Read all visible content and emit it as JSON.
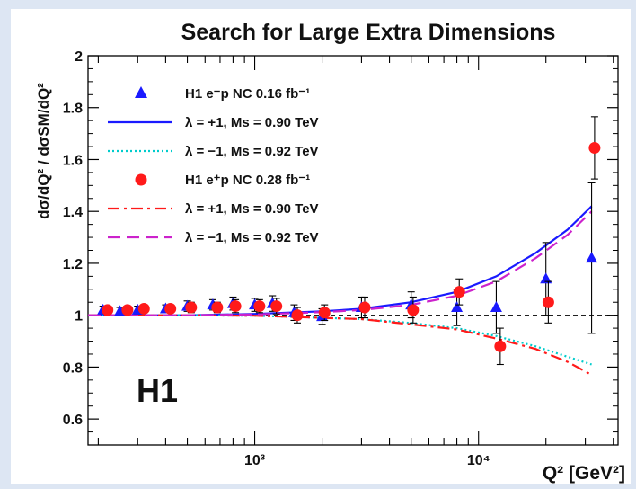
{
  "chart_data": {
    "type": "scatter",
    "title": "Search for Large Extra Dimensions",
    "xlabel": "Q² [GeV²]",
    "ylabel": "dσ/dQ² / dσSM/dQ²",
    "xscale": "log",
    "xlim": [
      180,
      42000
    ],
    "ylim": [
      0.5,
      2.0
    ],
    "x_ticks": [
      {
        "value": 1000,
        "label": "10³"
      },
      {
        "value": 10000,
        "label": "10⁴"
      }
    ],
    "y_ticks": [
      0.6,
      0.8,
      1.0,
      1.2,
      1.4,
      1.6,
      1.8,
      2.0
    ],
    "y_tick_labels": [
      "0.6",
      "0.8",
      "1",
      "1.2",
      "1.4",
      "1.6",
      "1.8",
      "2"
    ],
    "annotation": "H1",
    "reference_line": 1.0,
    "legend_position": "top-left",
    "series": [
      {
        "name": "H1 e⁻p NC 0.16 fb⁻¹",
        "kind": "points",
        "marker": "triangle",
        "color": "#1a1aff",
        "x": [
          210,
          250,
          300,
          400,
          500,
          650,
          800,
          1000,
          1200,
          1500,
          2000,
          3000,
          5000,
          8000,
          12000,
          20000,
          32000
        ],
        "y": [
          1.02,
          1.015,
          1.02,
          1.025,
          1.035,
          1.04,
          1.045,
          1.04,
          1.045,
          1.01,
          0.995,
          1.03,
          1.04,
          1.03,
          1.03,
          1.14,
          1.22
        ],
        "err": [
          0.015,
          0.015,
          0.015,
          0.015,
          0.02,
          0.02,
          0.025,
          0.025,
          0.03,
          0.03,
          0.03,
          0.04,
          0.05,
          0.07,
          0.1,
          0.14,
          0.29
        ]
      },
      {
        "name": "λ = +1,   Ms = 0.90 TeV",
        "kind": "line",
        "style": "solid",
        "color": "#1a1aff",
        "x": [
          180,
          500,
          1000,
          2000,
          3000,
          5000,
          8000,
          12000,
          18000,
          25000,
          32000
        ],
        "y": [
          1.0,
          1.0,
          1.005,
          1.015,
          1.025,
          1.05,
          1.09,
          1.15,
          1.24,
          1.33,
          1.42
        ]
      },
      {
        "name": "λ = −1,   Ms = 0.92 TeV",
        "kind": "line",
        "style": "dotted",
        "color": "#00cccc",
        "x": [
          180,
          500,
          1000,
          2000,
          3000,
          5000,
          8000,
          12000,
          18000,
          25000,
          32000
        ],
        "y": [
          1.0,
          1.0,
          0.998,
          0.99,
          0.985,
          0.97,
          0.95,
          0.92,
          0.88,
          0.84,
          0.81
        ]
      },
      {
        "name": "H1 e⁺p NC 0.28 fb⁻¹",
        "kind": "points",
        "marker": "circle",
        "color": "#ff1a1a",
        "x": [
          220,
          270,
          320,
          420,
          520,
          680,
          820,
          1050,
          1250,
          1550,
          2050,
          3100,
          5100,
          8200,
          12500,
          20500,
          33000
        ],
        "y": [
          1.02,
          1.02,
          1.025,
          1.025,
          1.03,
          1.03,
          1.035,
          1.035,
          1.035,
          1.0,
          1.01,
          1.03,
          1.02,
          1.09,
          0.88,
          1.05,
          1.645
        ],
        "err": [
          0.015,
          0.015,
          0.015,
          0.015,
          0.02,
          0.02,
          0.025,
          0.025,
          0.03,
          0.03,
          0.03,
          0.04,
          0.05,
          0.05,
          0.07,
          0.08,
          0.12
        ]
      },
      {
        "name": "λ = +1,   Ms = 0.90 TeV",
        "kind": "line",
        "style": "dashdot",
        "color": "#ff1a1a",
        "x": [
          180,
          500,
          1000,
          2000,
          3000,
          5000,
          8000,
          12000,
          18000,
          25000,
          32000
        ],
        "y": [
          1.0,
          1.0,
          0.998,
          0.99,
          0.985,
          0.965,
          0.945,
          0.91,
          0.87,
          0.82,
          0.77
        ]
      },
      {
        "name": "λ = −1,   Ms = 0.92 TeV",
        "kind": "line",
        "style": "dashed",
        "color": "#cc22cc",
        "x": [
          180,
          500,
          1000,
          2000,
          3000,
          5000,
          8000,
          12000,
          18000,
          25000,
          32000
        ],
        "y": [
          1.0,
          1.0,
          1.003,
          1.012,
          1.02,
          1.04,
          1.075,
          1.13,
          1.22,
          1.31,
          1.4
        ]
      }
    ]
  }
}
